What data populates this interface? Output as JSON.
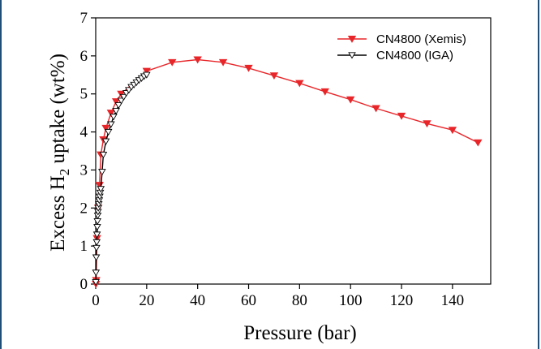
{
  "chart_data": {
    "type": "line",
    "xlabel": "Pressure (bar)",
    "ylabel_parts": [
      "Excess H",
      "2",
      " uptake (wt%)"
    ],
    "xlim": [
      0,
      155
    ],
    "ylim": [
      0,
      7
    ],
    "xticks": [
      0,
      20,
      40,
      60,
      80,
      100,
      120,
      140
    ],
    "yticks": [
      0,
      1,
      2,
      3,
      4,
      5,
      6,
      7
    ],
    "legend_position": "top-right",
    "series": [
      {
        "name": "CN4800 (Xemis)",
        "color": "#e8262a",
        "marker": "filled-down-triangle",
        "x": [
          0.1,
          0.2,
          0.5,
          1,
          1.5,
          2,
          3,
          4,
          6,
          8,
          10,
          20,
          30,
          40,
          50,
          60,
          70,
          80,
          90,
          100,
          110,
          120,
          130,
          140,
          150
        ],
        "y": [
          0.0,
          0.1,
          1.2,
          2.0,
          2.6,
          3.4,
          3.8,
          4.1,
          4.5,
          4.8,
          5.0,
          5.6,
          5.83,
          5.9,
          5.83,
          5.68,
          5.48,
          5.28,
          5.06,
          4.85,
          4.62,
          4.42,
          4.22,
          4.05,
          3.72
        ]
      },
      {
        "name": "CN4800 (IGA)",
        "color": "#000000",
        "marker": "open-down-triangle",
        "x": [
          0.05,
          0.1,
          0.2,
          0.3,
          0.4,
          0.5,
          0.6,
          0.7,
          0.8,
          0.9,
          1.0,
          1.2,
          1.4,
          1.6,
          1.8,
          2.0,
          2.5,
          3,
          4,
          5,
          6,
          7,
          8,
          9,
          10,
          11,
          12,
          13,
          14,
          15,
          16,
          17,
          18,
          19,
          20
        ],
        "y": [
          0.05,
          0.3,
          0.7,
          0.95,
          1.1,
          1.3,
          1.5,
          1.65,
          1.8,
          1.9,
          2.0,
          2.1,
          2.2,
          2.3,
          2.4,
          2.5,
          2.95,
          3.4,
          3.75,
          4.0,
          4.2,
          4.4,
          4.55,
          4.7,
          4.82,
          4.92,
          5.02,
          5.1,
          5.18,
          5.24,
          5.3,
          5.36,
          5.41,
          5.46,
          5.5
        ]
      }
    ]
  }
}
